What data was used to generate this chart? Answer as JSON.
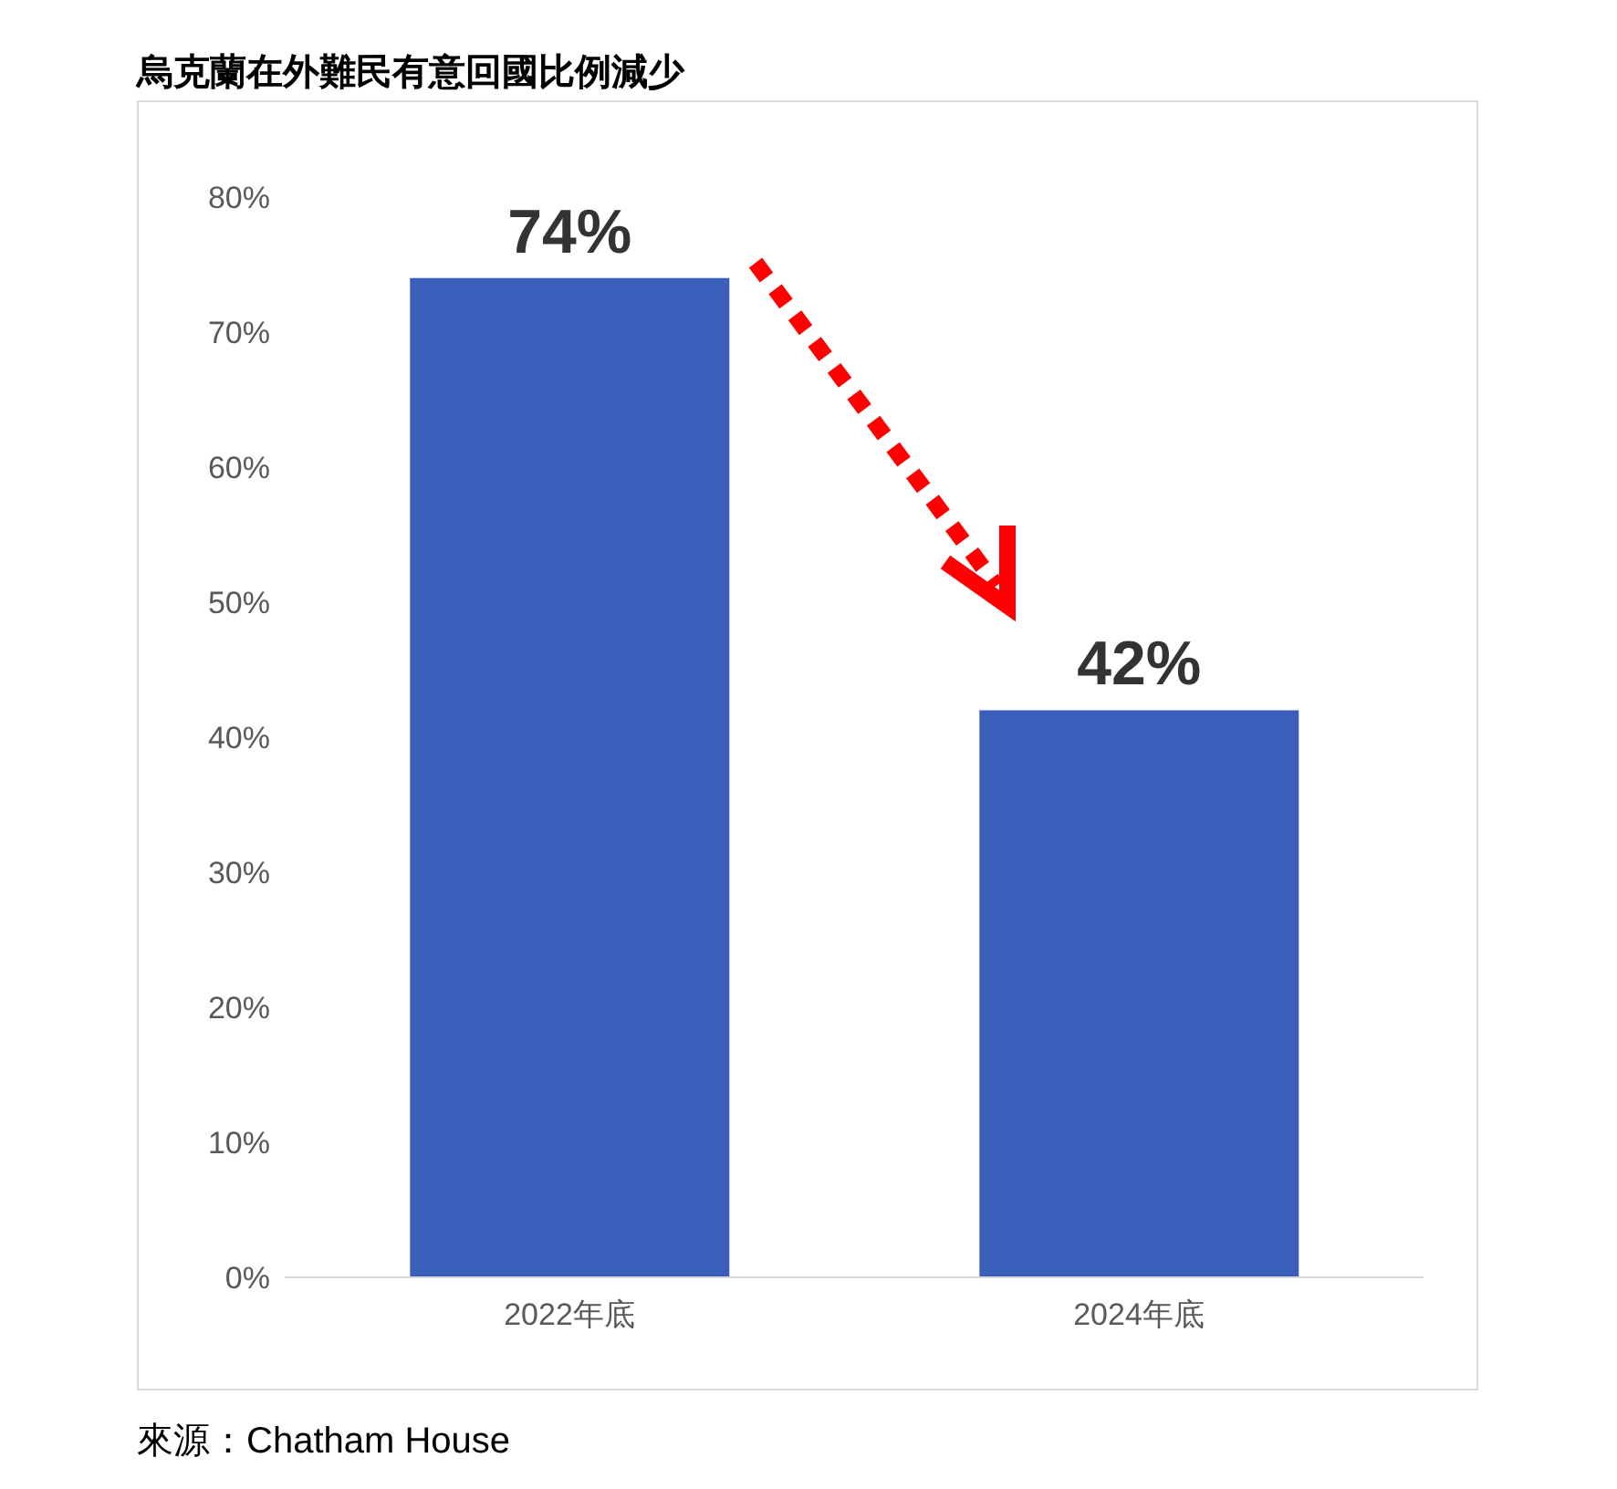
{
  "chart_data": {
    "type": "bar",
    "title": "烏克蘭在外難民有意回國比例減少",
    "categories": [
      "2022年底",
      "2024年底"
    ],
    "values": [
      74,
      42
    ],
    "value_labels": [
      "74%",
      "42%"
    ],
    "color": "#3a5fbb",
    "ylim": [
      0,
      80
    ],
    "yticks": [
      {
        "value": 0,
        "label": "0%"
      },
      {
        "value": 10,
        "label": "10%"
      },
      {
        "value": 20,
        "label": "20%"
      },
      {
        "value": 30,
        "label": "30%"
      },
      {
        "value": 40,
        "label": "40%"
      },
      {
        "value": 50,
        "label": "50%"
      },
      {
        "value": 60,
        "label": "60%"
      },
      {
        "value": 70,
        "label": "70%"
      },
      {
        "value": 80,
        "label": "80%"
      }
    ],
    "annotations": [
      "來源：Chatham House"
    ]
  }
}
